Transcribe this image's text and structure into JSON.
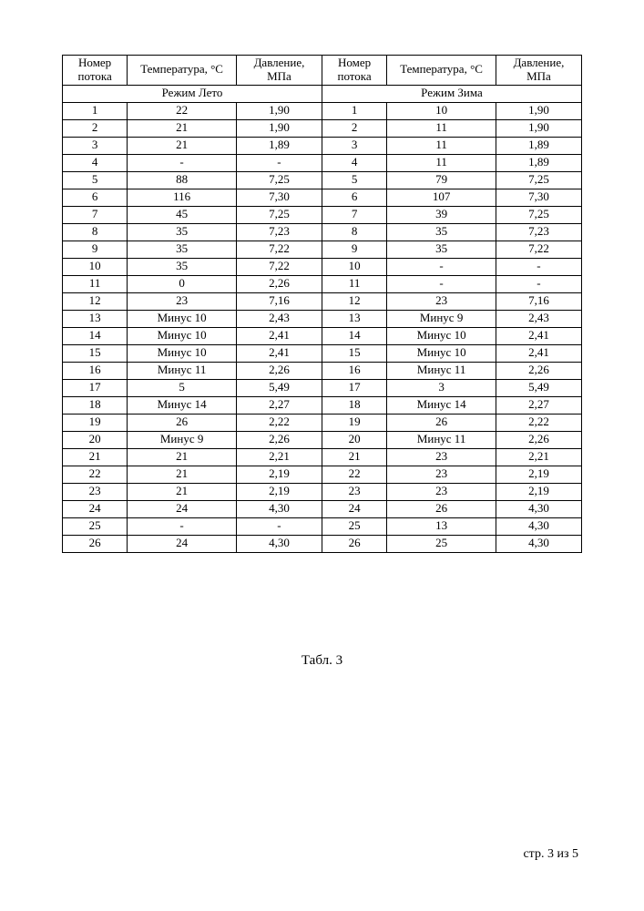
{
  "table": {
    "header": {
      "left": {
        "c1": "Номер потока",
        "c2": "Температура, °C",
        "c3": "Давление, МПа"
      },
      "right": {
        "c1": "Номер потока",
        "c2": "Температура, °C",
        "c3": "Давление, МПа"
      }
    },
    "subheader": {
      "left": "Режим Лето",
      "right": "Режим Зима"
    },
    "columns": {
      "widths": [
        "12.5%",
        "21%",
        "16.5%",
        "12.5%",
        "21%",
        "16.5%"
      ]
    },
    "rows": [
      {
        "l_num": "1",
        "l_temp": "22",
        "l_press": "1,90",
        "r_num": "1",
        "r_temp": "10",
        "r_press": "1,90"
      },
      {
        "l_num": "2",
        "l_temp": "21",
        "l_press": "1,90",
        "r_num": "2",
        "r_temp": "11",
        "r_press": "1,90"
      },
      {
        "l_num": "3",
        "l_temp": "21",
        "l_press": "1,89",
        "r_num": "3",
        "r_temp": "11",
        "r_press": "1,89"
      },
      {
        "l_num": "4",
        "l_temp": "-",
        "l_press": "-",
        "r_num": "4",
        "r_temp": "11",
        "r_press": "1,89"
      },
      {
        "l_num": "5",
        "l_temp": "88",
        "l_press": "7,25",
        "r_num": "5",
        "r_temp": "79",
        "r_press": "7,25"
      },
      {
        "l_num": "6",
        "l_temp": "116",
        "l_press": "7,30",
        "r_num": "6",
        "r_temp": "107",
        "r_press": "7,30"
      },
      {
        "l_num": "7",
        "l_temp": "45",
        "l_press": "7,25",
        "r_num": "7",
        "r_temp": "39",
        "r_press": "7,25"
      },
      {
        "l_num": "8",
        "l_temp": "35",
        "l_press": "7,23",
        "r_num": "8",
        "r_temp": "35",
        "r_press": "7,23"
      },
      {
        "l_num": "9",
        "l_temp": "35",
        "l_press": "7,22",
        "r_num": "9",
        "r_temp": "35",
        "r_press": "7,22"
      },
      {
        "l_num": "10",
        "l_temp": "35",
        "l_press": "7,22",
        "r_num": "10",
        "r_temp": "-",
        "r_press": "-"
      },
      {
        "l_num": "11",
        "l_temp": "0",
        "l_press": "2,26",
        "r_num": "11",
        "r_temp": "-",
        "r_press": "-"
      },
      {
        "l_num": "12",
        "l_temp": "23",
        "l_press": "7,16",
        "r_num": "12",
        "r_temp": "23",
        "r_press": "7,16"
      },
      {
        "l_num": "13",
        "l_temp": "Минус 10",
        "l_press": "2,43",
        "r_num": "13",
        "r_temp": "Минус 9",
        "r_press": "2,43"
      },
      {
        "l_num": "14",
        "l_temp": "Минус 10",
        "l_press": "2,41",
        "r_num": "14",
        "r_temp": "Минус 10",
        "r_press": "2,41"
      },
      {
        "l_num": "15",
        "l_temp": "Минус 10",
        "l_press": "2,41",
        "r_num": "15",
        "r_temp": "Минус 10",
        "r_press": "2,41"
      },
      {
        "l_num": "16",
        "l_temp": "Минус 11",
        "l_press": "2,26",
        "r_num": "16",
        "r_temp": "Минус 11",
        "r_press": "2,26"
      },
      {
        "l_num": "17",
        "l_temp": "5",
        "l_press": "5,49",
        "r_num": "17",
        "r_temp": "3",
        "r_press": "5,49"
      },
      {
        "l_num": "18",
        "l_temp": "Минус 14",
        "l_press": "2,27",
        "r_num": "18",
        "r_temp": "Минус 14",
        "r_press": "2,27"
      },
      {
        "l_num": "19",
        "l_temp": "26",
        "l_press": "2,22",
        "r_num": "19",
        "r_temp": "26",
        "r_press": "2,22"
      },
      {
        "l_num": "20",
        "l_temp": "Минус 9",
        "l_press": "2,26",
        "r_num": "20",
        "r_temp": "Минус 11",
        "r_press": "2,26"
      },
      {
        "l_num": "21",
        "l_temp": "21",
        "l_press": "2,21",
        "r_num": "21",
        "r_temp": "23",
        "r_press": "2,21"
      },
      {
        "l_num": "22",
        "l_temp": "21",
        "l_press": "2,19",
        "r_num": "22",
        "r_temp": "23",
        "r_press": "2,19"
      },
      {
        "l_num": "23",
        "l_temp": "21",
        "l_press": "2,19",
        "r_num": "23",
        "r_temp": "23",
        "r_press": "2,19"
      },
      {
        "l_num": "24",
        "l_temp": "24",
        "l_press": "4,30",
        "r_num": "24",
        "r_temp": "26",
        "r_press": "4,30"
      },
      {
        "l_num": "25",
        "l_temp": "-",
        "l_press": "-",
        "r_num": "25",
        "r_temp": "13",
        "r_press": "4,30"
      },
      {
        "l_num": "26",
        "l_temp": "24",
        "l_press": "4,30",
        "r_num": "26",
        "r_temp": "25",
        "r_press": "4,30"
      }
    ]
  },
  "caption": "Табл. 3",
  "footer": "стр. 3 из 5",
  "style": {
    "font_family": "Times New Roman",
    "font_size_body": 13,
    "font_size_caption": 15,
    "font_size_footer": 14,
    "border_color": "#000000",
    "background_color": "#ffffff",
    "text_color": "#000000"
  }
}
